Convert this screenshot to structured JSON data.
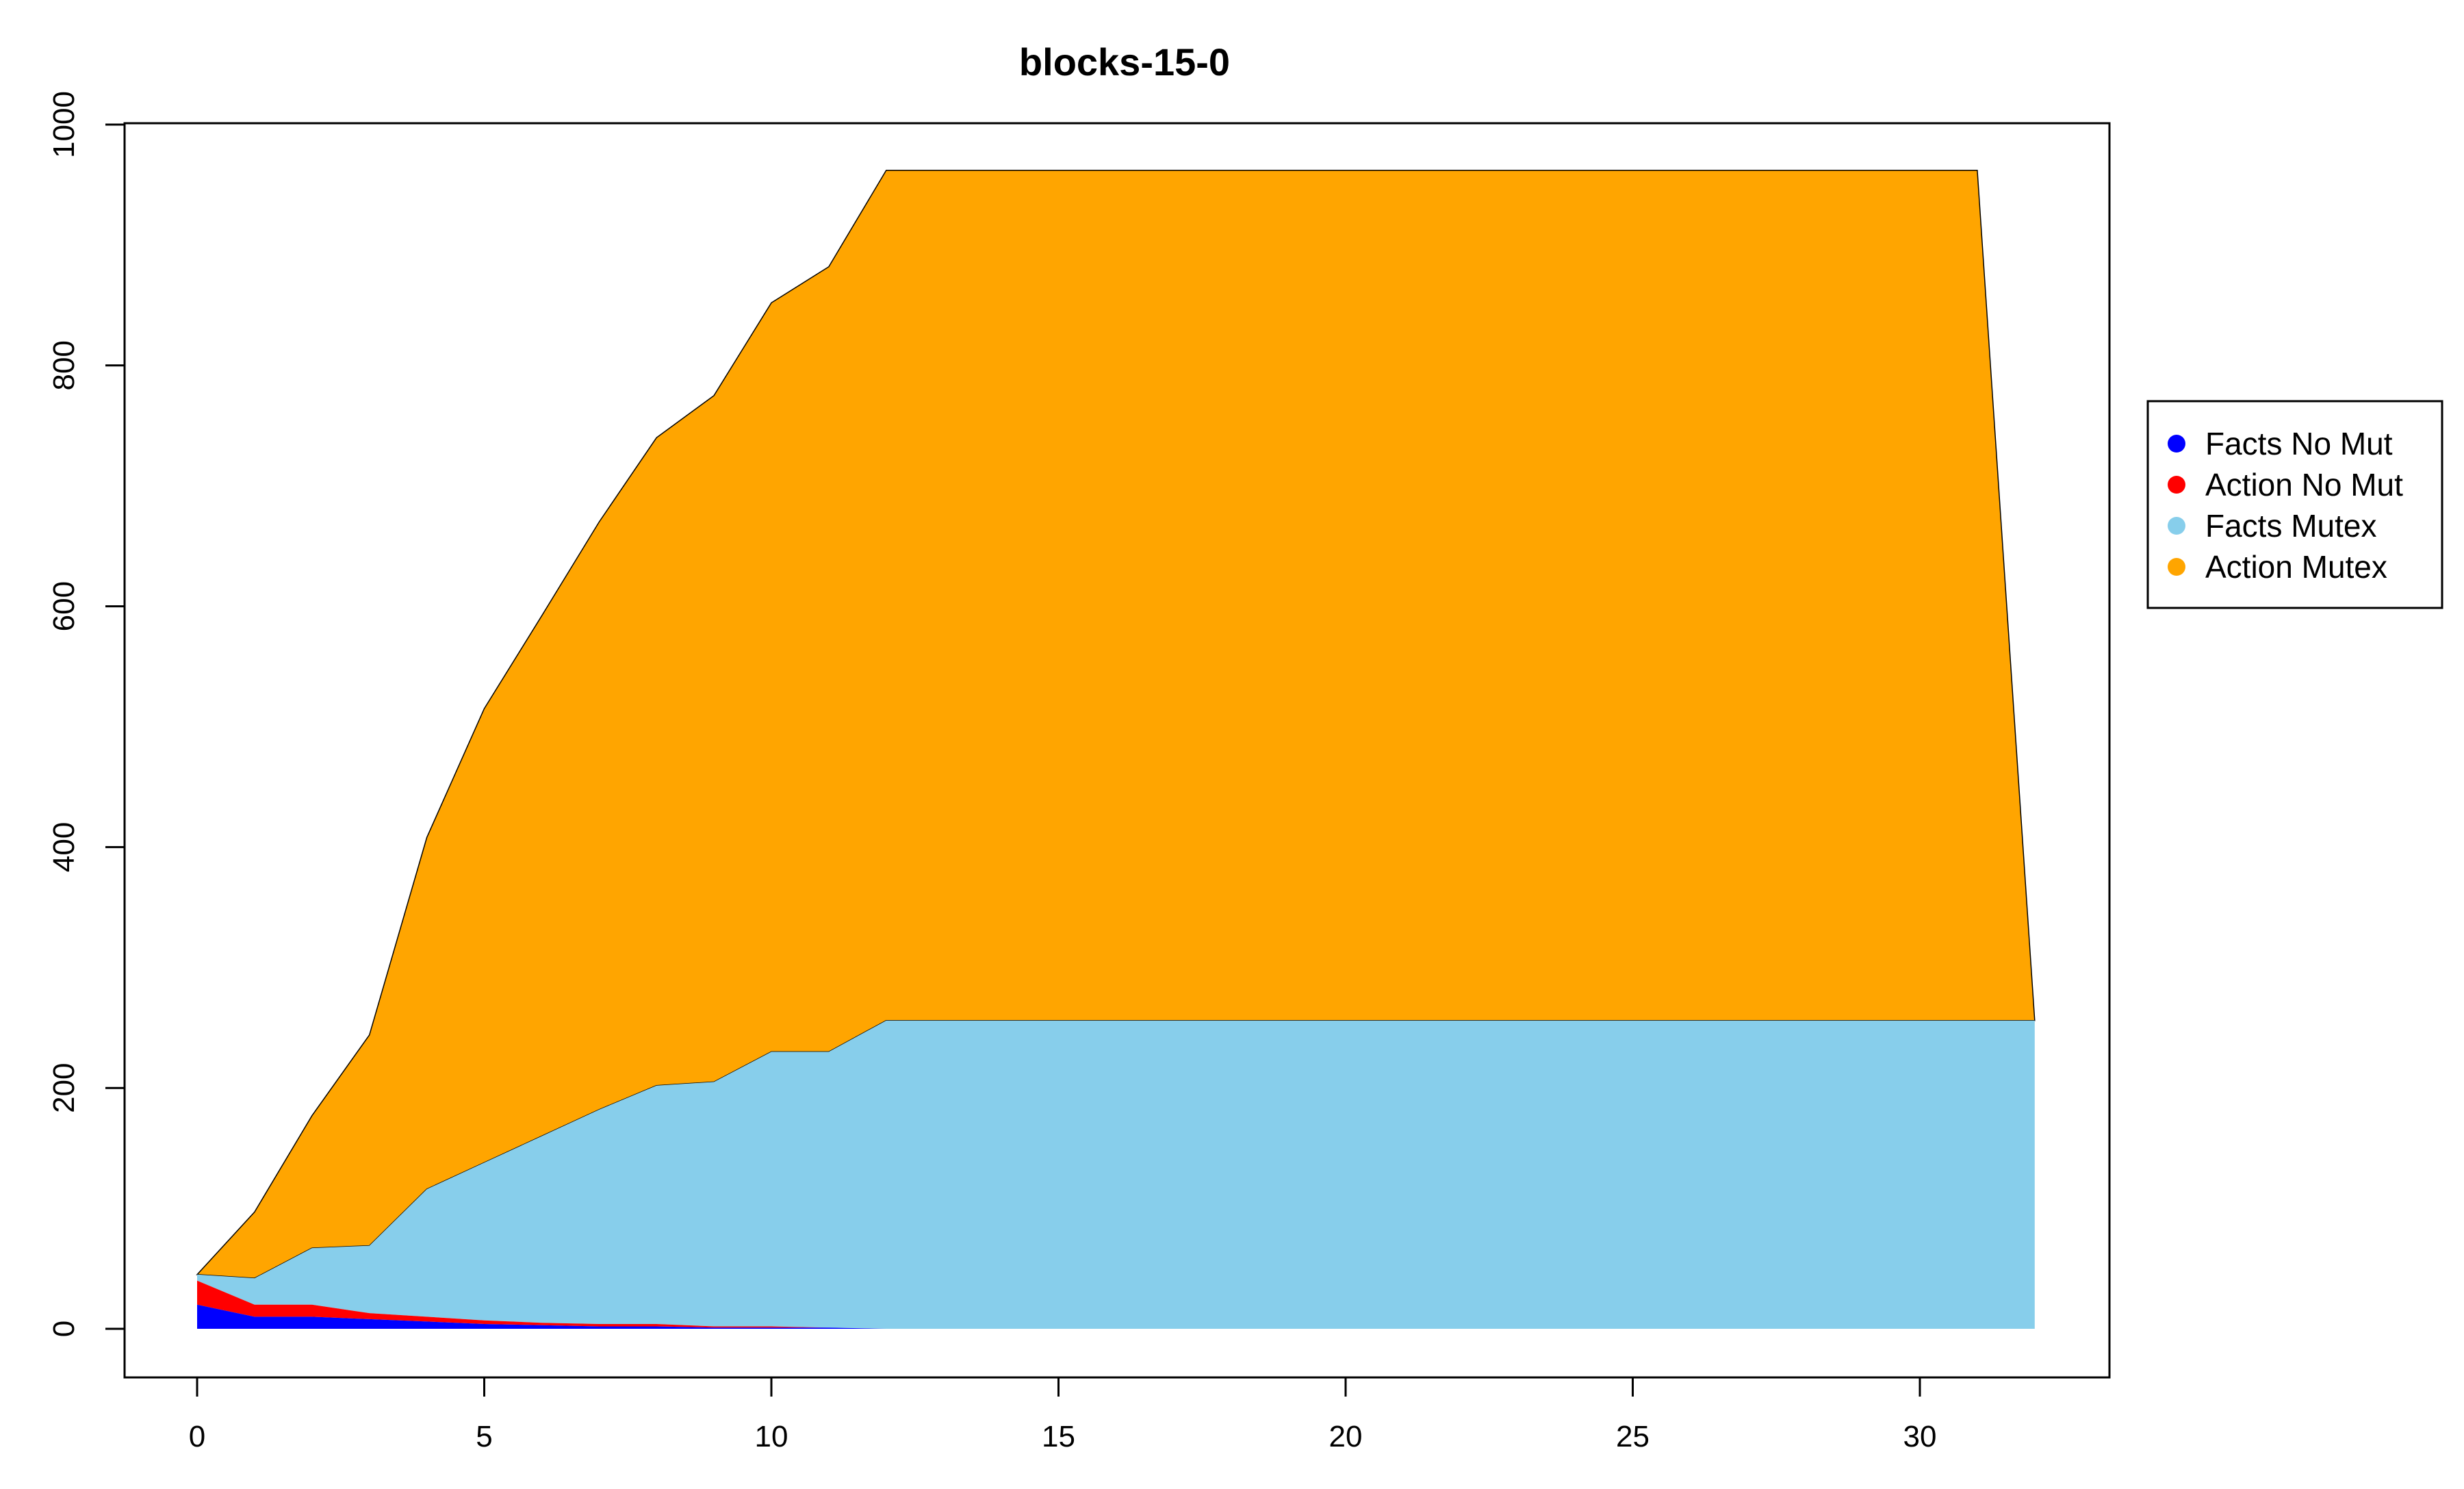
{
  "chart_data": {
    "type": "area",
    "stacked": true,
    "title": "blocks-15-0",
    "xlabel": "",
    "ylabel": "",
    "xlim": [
      0,
      32
    ],
    "ylim": [
      0,
      1000
    ],
    "x_ticks": [
      0,
      5,
      10,
      15,
      20,
      25,
      30
    ],
    "y_ticks": [
      0,
      200,
      400,
      600,
      800,
      1000
    ],
    "grid": false,
    "legend_position": "right",
    "x": [
      0,
      1,
      2,
      3,
      4,
      5,
      6,
      7,
      8,
      9,
      10,
      11,
      12,
      13,
      14,
      15,
      16,
      17,
      18,
      19,
      20,
      21,
      22,
      23,
      24,
      25,
      26,
      27,
      28,
      29,
      30,
      31,
      32
    ],
    "series": [
      {
        "name": "Facts No Mut",
        "color": "#0000ff",
        "values": [
          20,
          10,
          10,
          8,
          6,
          4,
          3,
          2,
          2,
          1,
          1,
          1,
          0,
          0,
          0,
          0,
          0,
          0,
          0,
          0,
          0,
          0,
          0,
          0,
          0,
          0,
          0,
          0,
          0,
          0,
          0,
          0,
          0
        ]
      },
      {
        "name": "Action No Mut",
        "color": "#ff0000",
        "values": [
          20,
          10,
          10,
          5,
          4,
          3,
          2,
          2,
          2,
          1,
          1,
          0,
          0,
          0,
          0,
          0,
          0,
          0,
          0,
          0,
          0,
          0,
          0,
          0,
          0,
          0,
          0,
          0,
          0,
          0,
          0,
          0,
          0
        ]
      },
      {
        "name": "Facts Mutex",
        "color": "#87ceeb",
        "values": [
          5,
          22,
          47,
          56,
          106,
          131,
          155,
          178,
          198,
          203,
          228,
          229,
          256,
          256,
          256,
          256,
          256,
          256,
          256,
          256,
          256,
          256,
          256,
          256,
          256,
          256,
          256,
          256,
          256,
          256,
          256,
          256,
          256
        ]
      },
      {
        "name": "Action Mutex",
        "color": "#ffa500",
        "values": [
          0,
          55,
          110,
          175,
          292,
          377,
          432,
          488,
          538,
          570,
          622,
          652,
          706,
          706,
          706,
          706,
          706,
          706,
          706,
          706,
          706,
          706,
          706,
          706,
          706,
          706,
          706,
          706,
          706,
          706,
          706,
          706,
          0
        ]
      }
    ]
  }
}
